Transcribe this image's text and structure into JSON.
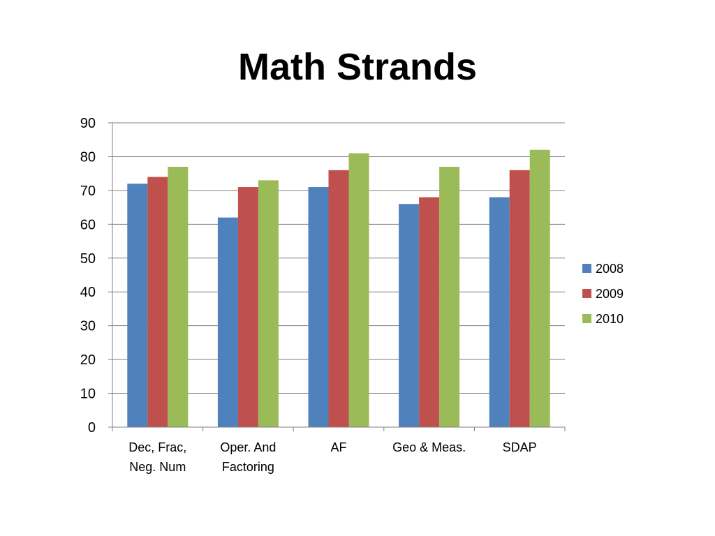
{
  "slide": {
    "title": "Math Strands"
  },
  "colors": {
    "series_2008": "#4F81BD",
    "series_2009": "#C0504D",
    "series_2010": "#9BBB59",
    "gridline": "#808080",
    "axis": "#808080",
    "background": "#FFFFFF"
  },
  "chart_data": {
    "type": "bar",
    "title": "Math Strands",
    "xlabel": "",
    "ylabel": "",
    "categories": [
      [
        "Dec, Frac,",
        "Neg. Num"
      ],
      [
        "Oper. And",
        "Factoring"
      ],
      [
        "AF"
      ],
      [
        "Geo & Meas."
      ],
      [
        "SDAP"
      ]
    ],
    "series": [
      {
        "name": "2008",
        "color": "#4F81BD",
        "values": [
          72,
          62,
          71,
          66,
          68
        ]
      },
      {
        "name": "2009",
        "color": "#C0504D",
        "values": [
          74,
          71,
          76,
          68,
          76
        ]
      },
      {
        "name": "2010",
        "color": "#9BBB59",
        "values": [
          77,
          73,
          81,
          77,
          82
        ]
      }
    ],
    "ylim": [
      0,
      90
    ],
    "yticks": [
      "0",
      "10",
      "20",
      "30",
      "40",
      "50",
      "60",
      "70",
      "80",
      "90"
    ],
    "grid": true,
    "legend_position": "right"
  }
}
